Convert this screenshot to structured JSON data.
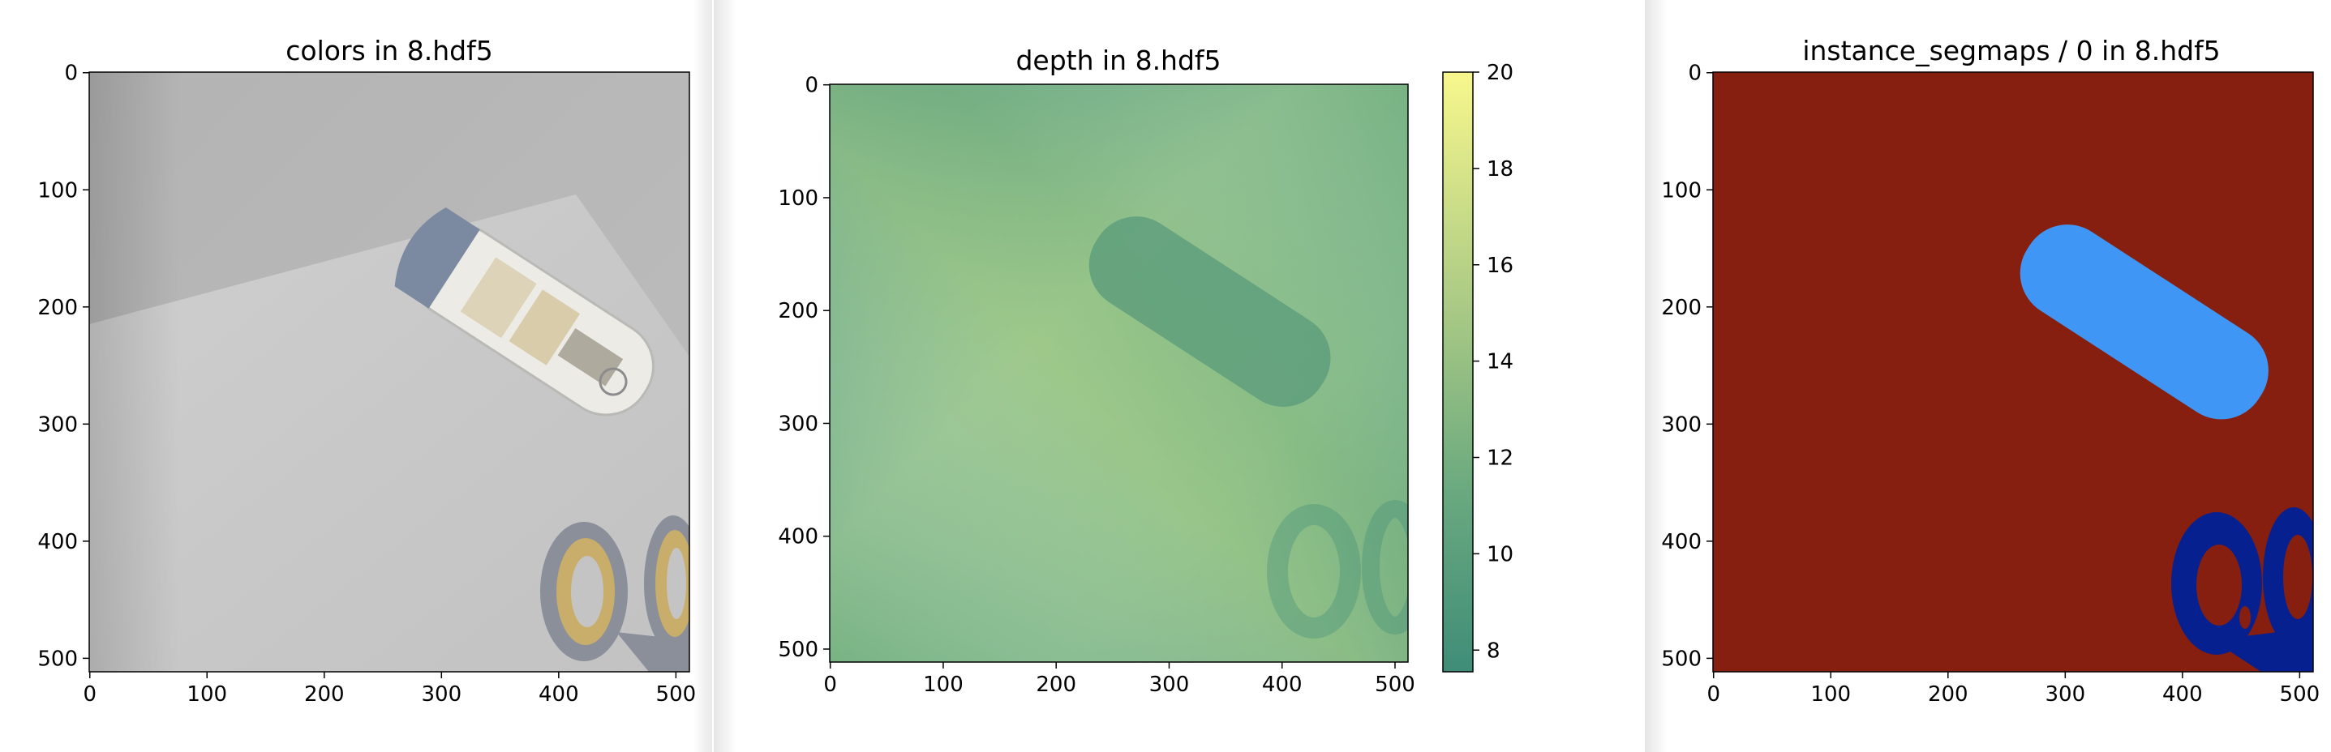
{
  "panels": [
    {
      "title": "colors in 8.hdf5",
      "y_ticks": [
        "0",
        "100",
        "200",
        "300",
        "400",
        "500"
      ],
      "x_ticks": [
        "0",
        "100",
        "200",
        "300",
        "400",
        "500"
      ]
    },
    {
      "title": "depth in 8.hdf5",
      "y_ticks": [
        "0",
        "100",
        "200",
        "300",
        "400",
        "500"
      ],
      "x_ticks": [
        "0",
        "100",
        "200",
        "300",
        "400",
        "500"
      ],
      "colorbar_ticks": [
        "8",
        "10",
        "12",
        "14",
        "16",
        "18",
        "20"
      ]
    },
    {
      "title": "instance_segmaps / 0 in 8.hdf5",
      "y_ticks": [
        "0",
        "100",
        "200",
        "300",
        "400",
        "500"
      ],
      "x_ticks": [
        "0",
        "100",
        "200",
        "300",
        "400",
        "500"
      ]
    }
  ],
  "colors": {
    "background": "#e9e9e9",
    "paper": "#c6c6c6",
    "bottle_body": "#e8e8e4",
    "bottle_cap": "#7b8aa0",
    "scissor_handle": "#c8ae6a",
    "scissor_grip": "#8a8f9a",
    "depth_dark": "#3f8d78",
    "depth_light": "#9cc385",
    "colorbar_top": "#f8f78c",
    "colorbar_bottom": "#3f8d78",
    "seg_background": "#861f10",
    "seg_bottle": "#3f96f5",
    "seg_scissors": "#06208f"
  }
}
